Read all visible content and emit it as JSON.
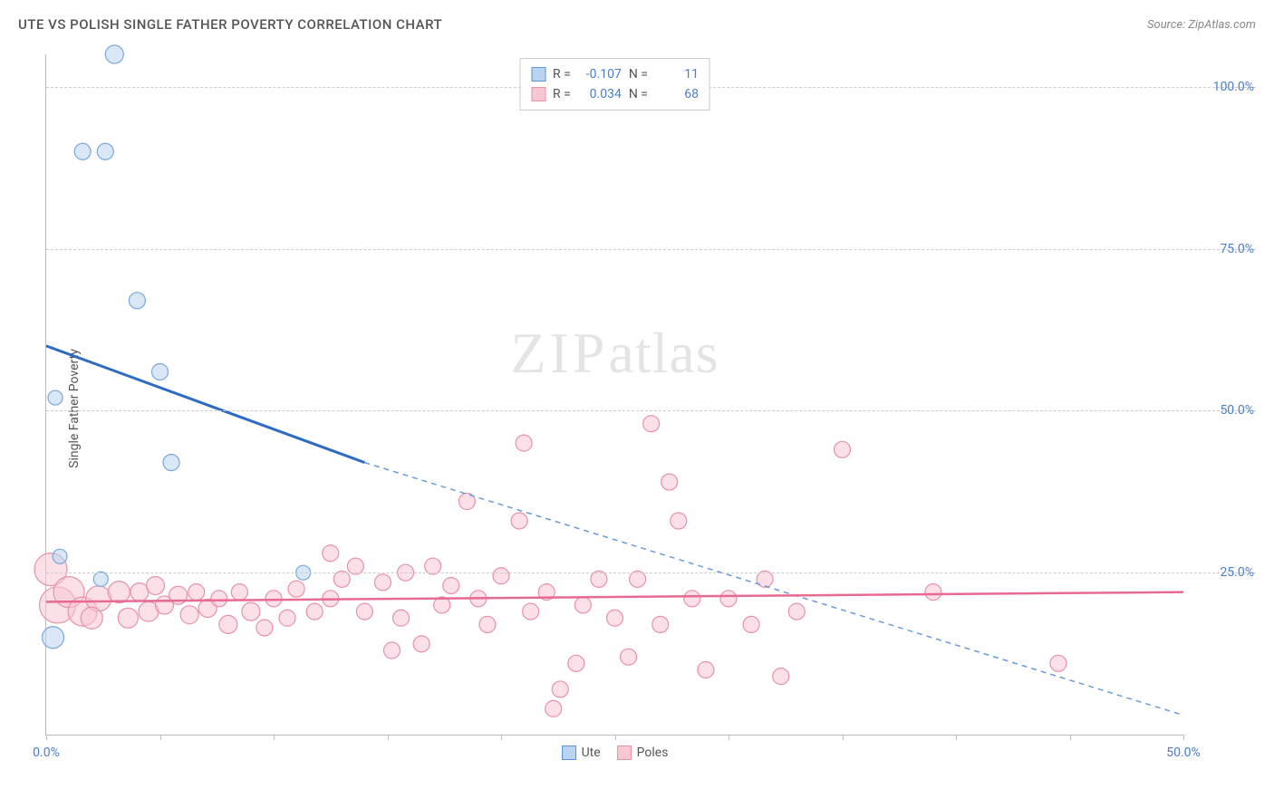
{
  "title": "UTE VS POLISH SINGLE FATHER POVERTY CORRELATION CHART",
  "source_label": "Source: ZipAtlas.com",
  "y_axis_title": "Single Father Poverty",
  "watermark": {
    "part1": "ZIP",
    "part2": "atlas"
  },
  "top_legend": {
    "series": [
      {
        "swatch_fill": "#b9d4f0",
        "swatch_border": "#5a93d6",
        "r_label": "R =",
        "r_value": "-0.107",
        "n_label": "N =",
        "n_value": "11"
      },
      {
        "swatch_fill": "#f7c8d4",
        "swatch_border": "#e890aa",
        "r_label": "R =",
        "r_value": "0.034",
        "n_label": "N =",
        "n_value": "68"
      }
    ]
  },
  "bottom_legend": {
    "items": [
      {
        "label": "Ute",
        "swatch_fill": "#b9d4f0",
        "swatch_border": "#5a93d6"
      },
      {
        "label": "Poles",
        "swatch_fill": "#f7c8d4",
        "swatch_border": "#e890aa"
      }
    ]
  },
  "chart": {
    "type": "scatter",
    "xlim": [
      0,
      50
    ],
    "ylim": [
      0,
      105
    ],
    "x_ticks": [
      0,
      5,
      10,
      15,
      20,
      25,
      30,
      35,
      40,
      45,
      50
    ],
    "x_tick_labels": {
      "0": "0.0%",
      "50": "50.0%"
    },
    "y_gridlines": [
      25,
      50,
      75,
      100
    ],
    "y_tick_labels": {
      "25": "25.0%",
      "50": "50.0%",
      "75": "75.0%",
      "100": "100.0%"
    },
    "grid_color": "#cccccc",
    "axis_color": "#bbbbbb",
    "background_color": "#ffffff",
    "label_color": "#4a7ec9",
    "series": {
      "ute": {
        "color_fill": "#b9d4f0",
        "color_stroke": "#7aa8dd",
        "fill_opacity": 0.55,
        "default_radius": 9,
        "trend": {
          "solid": {
            "x1": 0,
            "y1": 60,
            "x2": 14,
            "y2": 42,
            "color": "#2d6bc4",
            "width": 3
          },
          "dashed": {
            "x1": 14,
            "y1": 42,
            "x2": 50,
            "y2": 3,
            "color": "#6a9ad8",
            "width": 1.5,
            "dash": "6 5"
          }
        },
        "points": [
          {
            "x": 3.0,
            "y": 105,
            "r": 10
          },
          {
            "x": 1.6,
            "y": 90,
            "r": 9
          },
          {
            "x": 2.6,
            "y": 90,
            "r": 9
          },
          {
            "x": 4.0,
            "y": 67,
            "r": 9
          },
          {
            "x": 5.0,
            "y": 56,
            "r": 9
          },
          {
            "x": 0.4,
            "y": 52,
            "r": 8
          },
          {
            "x": 5.5,
            "y": 42,
            "r": 9
          },
          {
            "x": 0.6,
            "y": 27.5,
            "r": 8
          },
          {
            "x": 2.4,
            "y": 24,
            "r": 8
          },
          {
            "x": 11.3,
            "y": 25,
            "r": 8
          },
          {
            "x": 0.3,
            "y": 15,
            "r": 12
          }
        ]
      },
      "poles": {
        "color_fill": "#f7c8d4",
        "color_stroke": "#e890aa",
        "fill_opacity": 0.55,
        "default_radius": 9,
        "trend": {
          "solid": {
            "x1": 0,
            "y1": 20.5,
            "x2": 50,
            "y2": 22,
            "color": "#e76a90",
            "width": 2.5
          }
        },
        "points": [
          {
            "x": 0.2,
            "y": 25.5,
            "r": 18
          },
          {
            "x": 0.5,
            "y": 20,
            "r": 20
          },
          {
            "x": 1.0,
            "y": 22,
            "r": 17
          },
          {
            "x": 1.6,
            "y": 19,
            "r": 16
          },
          {
            "x": 2.3,
            "y": 21,
            "r": 14
          },
          {
            "x": 2.0,
            "y": 18,
            "r": 12
          },
          {
            "x": 3.2,
            "y": 22,
            "r": 12
          },
          {
            "x": 3.6,
            "y": 18,
            "r": 11
          },
          {
            "x": 4.1,
            "y": 22,
            "r": 10
          },
          {
            "x": 4.5,
            "y": 19,
            "r": 11
          },
          {
            "x": 4.8,
            "y": 23,
            "r": 10
          },
          {
            "x": 5.2,
            "y": 20,
            "r": 10
          },
          {
            "x": 5.8,
            "y": 21.5,
            "r": 10
          },
          {
            "x": 6.3,
            "y": 18.5,
            "r": 10
          },
          {
            "x": 6.6,
            "y": 22,
            "r": 9
          },
          {
            "x": 7.1,
            "y": 19.5,
            "r": 10
          },
          {
            "x": 7.6,
            "y": 21,
            "r": 9
          },
          {
            "x": 8.0,
            "y": 17,
            "r": 10
          },
          {
            "x": 8.5,
            "y": 22,
            "r": 9
          },
          {
            "x": 9.0,
            "y": 19,
            "r": 10
          },
          {
            "x": 9.6,
            "y": 16.5,
            "r": 9
          },
          {
            "x": 10.0,
            "y": 21,
            "r": 9
          },
          {
            "x": 10.6,
            "y": 18,
            "r": 9
          },
          {
            "x": 11.0,
            "y": 22.5,
            "r": 9
          },
          {
            "x": 11.8,
            "y": 19,
            "r": 9
          },
          {
            "x": 12.5,
            "y": 21,
            "r": 9
          },
          {
            "x": 12.5,
            "y": 28,
            "r": 9
          },
          {
            "x": 13.0,
            "y": 24,
            "r": 9
          },
          {
            "x": 13.6,
            "y": 26,
            "r": 9
          },
          {
            "x": 14.0,
            "y": 19,
            "r": 9
          },
          {
            "x": 14.8,
            "y": 23.5,
            "r": 9
          },
          {
            "x": 15.2,
            "y": 13,
            "r": 9
          },
          {
            "x": 15.6,
            "y": 18,
            "r": 9
          },
          {
            "x": 15.8,
            "y": 25,
            "r": 9
          },
          {
            "x": 16.5,
            "y": 14,
            "r": 9
          },
          {
            "x": 17.0,
            "y": 26,
            "r": 9
          },
          {
            "x": 17.4,
            "y": 20,
            "r": 9
          },
          {
            "x": 17.8,
            "y": 23,
            "r": 9
          },
          {
            "x": 18.5,
            "y": 36,
            "r": 9
          },
          {
            "x": 19.0,
            "y": 21,
            "r": 9
          },
          {
            "x": 19.4,
            "y": 17,
            "r": 9
          },
          {
            "x": 20.0,
            "y": 24.5,
            "r": 9
          },
          {
            "x": 20.8,
            "y": 33,
            "r": 9
          },
          {
            "x": 21.0,
            "y": 45,
            "r": 9
          },
          {
            "x": 21.3,
            "y": 19,
            "r": 9
          },
          {
            "x": 22.0,
            "y": 22,
            "r": 9
          },
          {
            "x": 22.3,
            "y": 4,
            "r": 9
          },
          {
            "x": 22.6,
            "y": 7,
            "r": 9
          },
          {
            "x": 23.3,
            "y": 11,
            "r": 9
          },
          {
            "x": 23.6,
            "y": 20,
            "r": 9
          },
          {
            "x": 24.3,
            "y": 24,
            "r": 9
          },
          {
            "x": 25.0,
            "y": 18,
            "r": 9
          },
          {
            "x": 25.6,
            "y": 12,
            "r": 9
          },
          {
            "x": 26.0,
            "y": 24,
            "r": 9
          },
          {
            "x": 26.6,
            "y": 48,
            "r": 9
          },
          {
            "x": 27.0,
            "y": 17,
            "r": 9
          },
          {
            "x": 27.4,
            "y": 39,
            "r": 9
          },
          {
            "x": 27.8,
            "y": 33,
            "r": 9
          },
          {
            "x": 28.4,
            "y": 21,
            "r": 9
          },
          {
            "x": 29.0,
            "y": 10,
            "r": 9
          },
          {
            "x": 30.0,
            "y": 21,
            "r": 9
          },
          {
            "x": 31.0,
            "y": 17,
            "r": 9
          },
          {
            "x": 31.6,
            "y": 24,
            "r": 9
          },
          {
            "x": 32.3,
            "y": 9,
            "r": 9
          },
          {
            "x": 33.0,
            "y": 19,
            "r": 9
          },
          {
            "x": 35.0,
            "y": 44,
            "r": 9
          },
          {
            "x": 39.0,
            "y": 22,
            "r": 9
          },
          {
            "x": 44.5,
            "y": 11,
            "r": 9
          }
        ]
      }
    }
  }
}
